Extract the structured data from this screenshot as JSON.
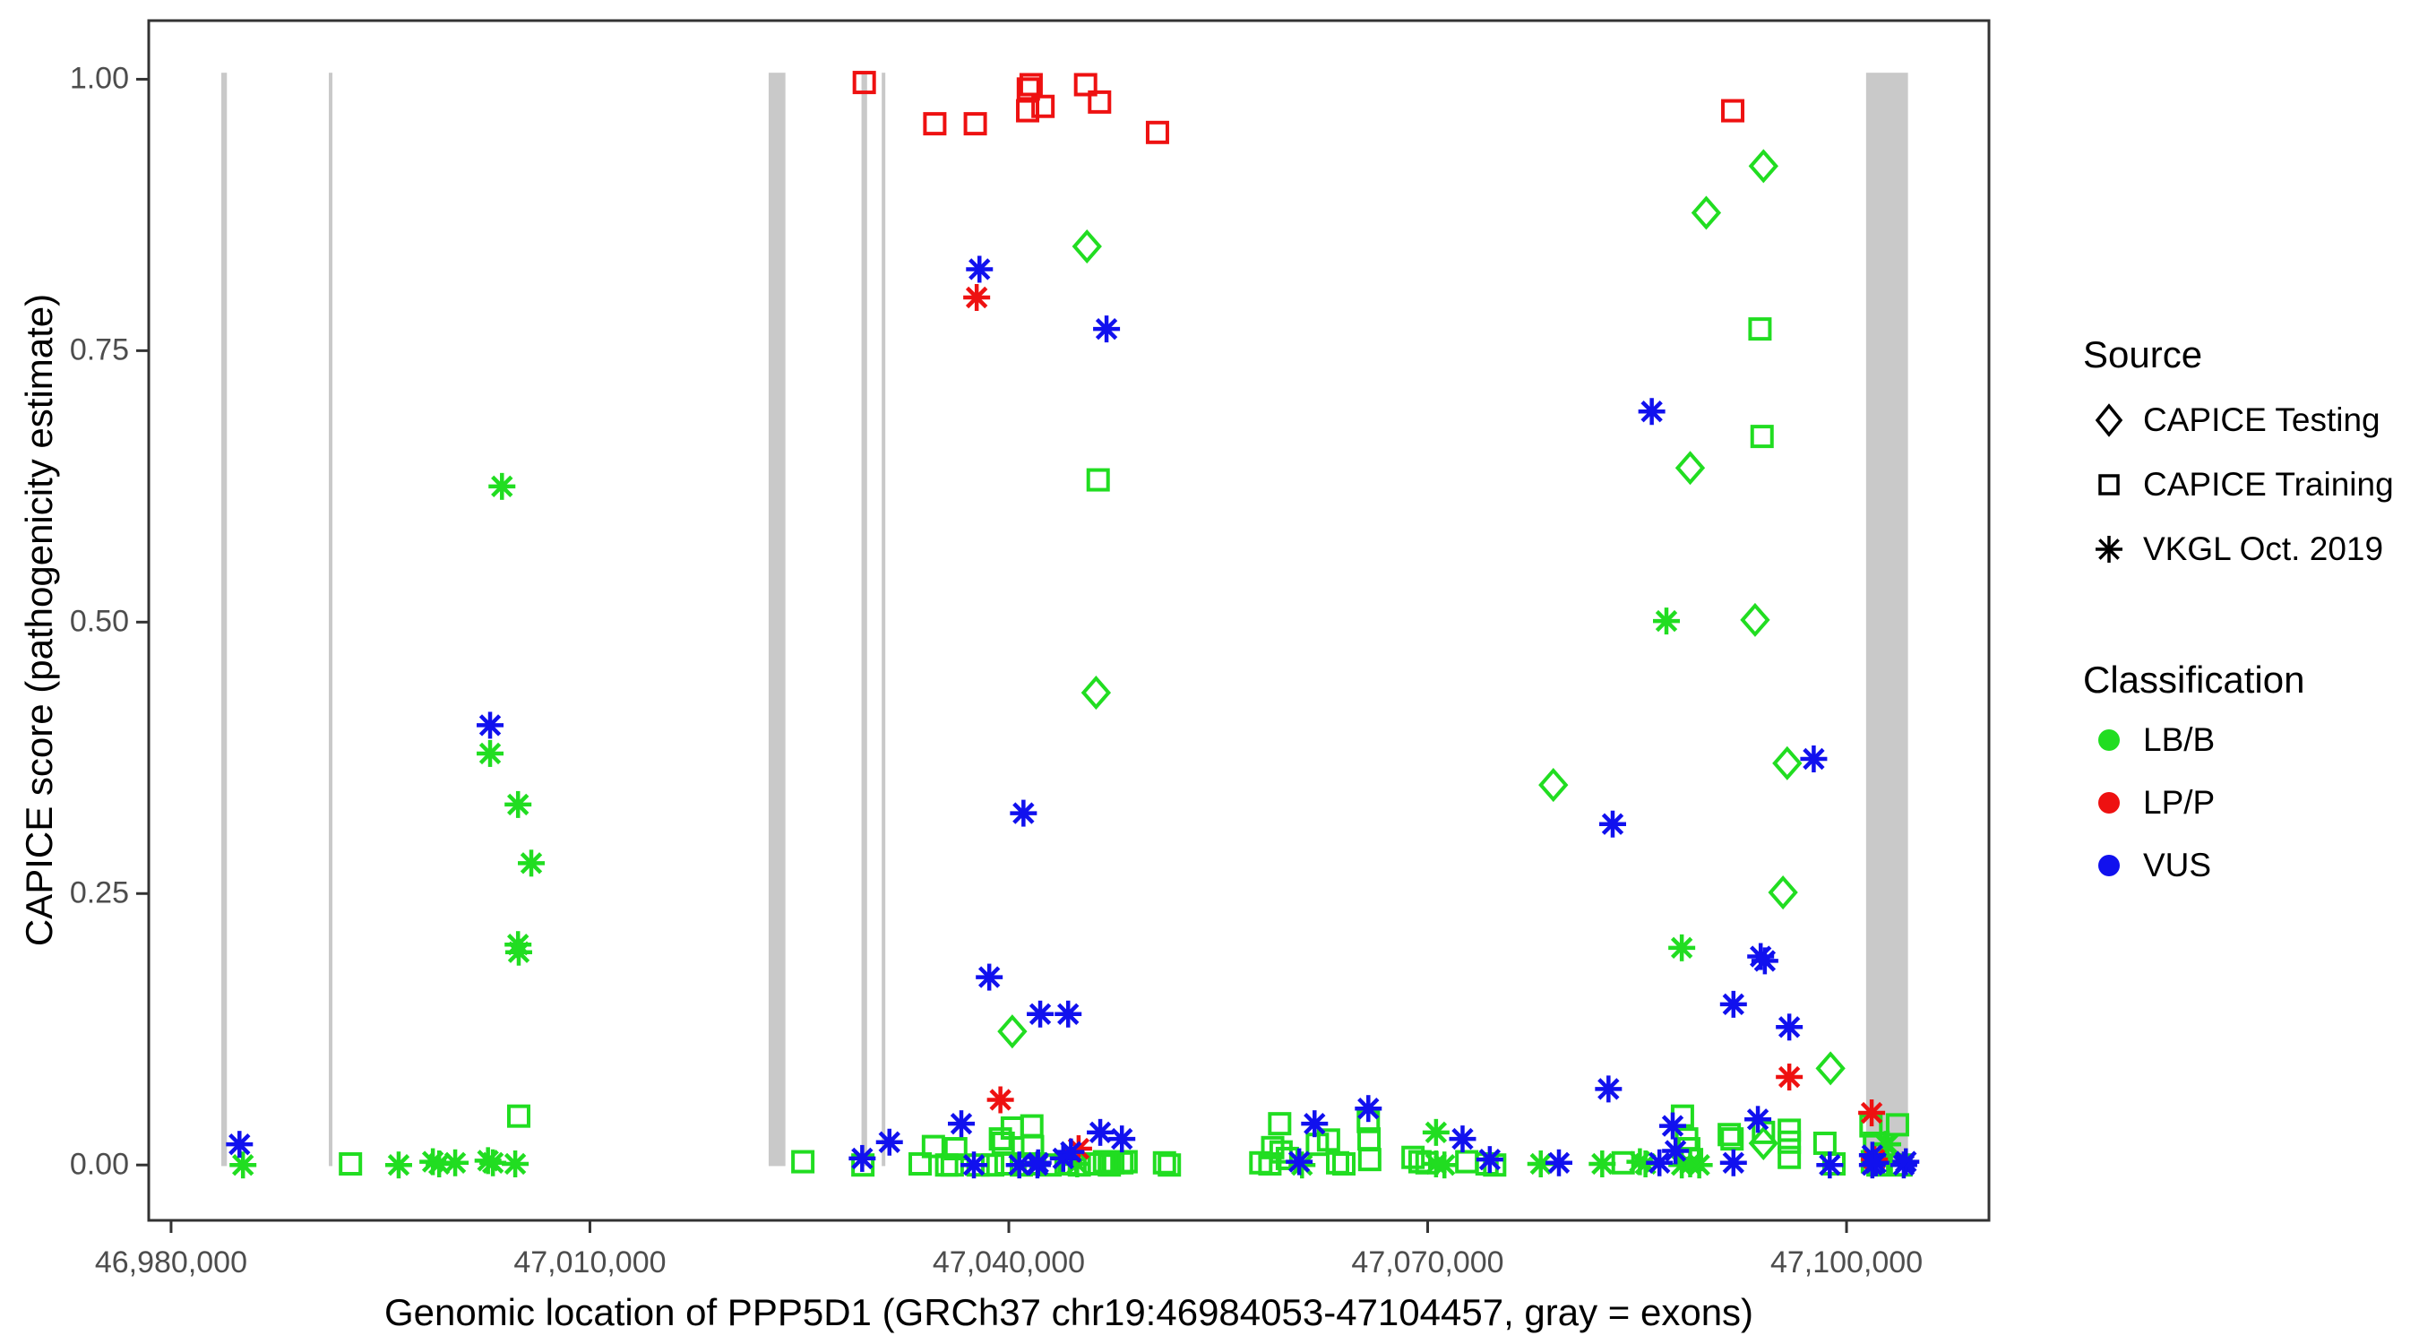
{
  "axis": {
    "x_label": "Genomic location of PPP5D1 (GRCh37 chr19:46984053-47104457, gray = exons)",
    "y_label": "CAPICE score (pathogenicity estimate)"
  },
  "legend": {
    "source": {
      "title": "Source",
      "items": [
        {
          "label": "CAPICE Testing",
          "symbol": "diamond"
        },
        {
          "label": "CAPICE Training",
          "symbol": "square"
        },
        {
          "label": "VKGL Oct. 2019",
          "symbol": "asterisk"
        }
      ]
    },
    "classification": {
      "title": "Classification",
      "items": [
        {
          "label": "LB/B",
          "color_key": "lbb"
        },
        {
          "label": "LP/P",
          "color_key": "lpp"
        },
        {
          "label": "VUS",
          "color_key": "vus"
        }
      ]
    }
  },
  "chart_data": {
    "type": "scatter",
    "title": "",
    "xlabel": "Genomic location of PPP5D1 (GRCh37 chr19:46984053-47104457, gray = exons)",
    "ylabel": "CAPICE score (pathogenicity estimate)",
    "grid": false,
    "legend_position": "right",
    "colors": {
      "lbb": "#21dd21",
      "lpp": "#ee1111",
      "vus": "#1111ee",
      "exon": "#c9c9c9",
      "border": "#333333",
      "tick": "#333333",
      "tick_text": "#4d4d4d"
    },
    "x_axis": {
      "label": "Genomic location of PPP5D1 (GRCh37 chr19:46984053-47104457, gray = exons)",
      "range": [
        46978400,
        47110200
      ],
      "ticks": [
        {
          "pos": 46980000,
          "label": "46,980,000"
        },
        {
          "pos": 47010000,
          "label": "47,010,000"
        },
        {
          "pos": 47040000,
          "label": "47,040,000"
        },
        {
          "pos": 47070000,
          "label": "47,070,000"
        },
        {
          "pos": 47100000,
          "label": "47,100,000"
        }
      ]
    },
    "y_axis": {
      "label": "CAPICE score (pathogenicity estimate)",
      "range": [
        -0.051,
        1.054
      ],
      "ticks": [
        {
          "val": 0.0,
          "label": "0.00"
        },
        {
          "val": 0.25,
          "label": "0.25"
        },
        {
          "val": 0.5,
          "label": "0.50"
        },
        {
          "val": 0.75,
          "label": "0.75"
        },
        {
          "val": 1.0,
          "label": "1.00"
        }
      ]
    },
    "exons": [
      [
        46983600,
        46984000
      ],
      [
        46991300,
        46991550
      ],
      [
        47022800,
        47024000
      ],
      [
        47029450,
        47029850
      ],
      [
        47030900,
        47031150
      ],
      [
        47101400,
        47104400
      ]
    ],
    "exon_score_span": [
      -0.001,
      1.006
    ],
    "series": [
      {
        "name": "CAPICE Testing LB/B",
        "source": "CAPICE Testing",
        "classification": "LB/B",
        "symbol": "diamond",
        "color_key": "lbb",
        "points": [
          [
            47040250,
            0.123
          ],
          [
            47045600,
            0.846
          ],
          [
            47046250,
            0.435
          ],
          [
            47079000,
            0.35
          ],
          [
            47088800,
            0.642
          ],
          [
            47089950,
            0.877
          ],
          [
            47093450,
            0.502
          ],
          [
            47094050,
            0.92
          ],
          [
            47094050,
            0.02
          ],
          [
            47095450,
            0.251
          ],
          [
            47095750,
            0.37
          ],
          [
            47098850,
            0.089
          ]
        ]
      },
      {
        "name": "CAPICE Training LB/B",
        "source": "CAPICE Training",
        "classification": "LB/B",
        "symbol": "square",
        "color_key": "lbb",
        "points": [
          [
            47046400,
            0.631
          ],
          [
            47093800,
            0.77
          ],
          [
            47093950,
            0.671
          ],
          [
            47004900,
            0.045
          ],
          [
            46992850,
            0.001
          ],
          [
            47025250,
            0.003
          ],
          [
            47029550,
            0.0
          ],
          [
            47033650,
            0.001
          ],
          [
            47034600,
            0.017
          ],
          [
            47035550,
            0.0
          ],
          [
            47035950,
            0.0
          ],
          [
            47036200,
            0.015
          ],
          [
            47037800,
            0.0
          ],
          [
            47038850,
            0.0
          ],
          [
            47039400,
            0.024
          ],
          [
            47039600,
            0.02
          ],
          [
            47039800,
            0.001
          ],
          [
            47040250,
            0.034
          ],
          [
            47040900,
            0.0
          ],
          [
            47041650,
            0.036
          ],
          [
            47041700,
            0.017
          ],
          [
            47041850,
            0.001
          ],
          [
            47042950,
            0.0
          ],
          [
            47044100,
            0.001
          ],
          [
            47045050,
            0.0
          ],
          [
            47046150,
            0.001
          ],
          [
            47046850,
            0.003
          ],
          [
            47047200,
            0.0
          ],
          [
            47047450,
            0.002
          ],
          [
            47048100,
            0.002
          ],
          [
            47048400,
            0.003
          ],
          [
            47051150,
            0.002
          ],
          [
            47051500,
            0.0
          ],
          [
            47058050,
            0.002
          ],
          [
            47058700,
            0.001
          ],
          [
            47058900,
            0.016
          ],
          [
            47059400,
            0.038
          ],
          [
            47059500,
            0.012
          ],
          [
            47059950,
            0.006
          ],
          [
            47062100,
            0.019
          ],
          [
            47062900,
            0.023
          ],
          [
            47063550,
            0.002
          ],
          [
            47064000,
            0.001
          ],
          [
            47065750,
            0.04
          ],
          [
            47065800,
            0.024
          ],
          [
            47065850,
            0.005
          ],
          [
            47068950,
            0.007
          ],
          [
            47069450,
            0.003
          ],
          [
            47069950,
            0.002
          ],
          [
            47072800,
            0.003
          ],
          [
            47074250,
            0.001
          ],
          [
            47074800,
            0.0
          ],
          [
            47084000,
            0.002
          ],
          [
            47088250,
            0.045
          ],
          [
            47088550,
            0.024
          ],
          [
            47088700,
            0.015
          ],
          [
            47088900,
            0.005
          ],
          [
            47091600,
            0.028
          ],
          [
            47091800,
            0.024
          ],
          [
            47094050,
            0.03
          ],
          [
            47095900,
            0.032
          ],
          [
            47095900,
            0.021
          ],
          [
            47095900,
            0.007
          ],
          [
            47098450,
            0.02
          ],
          [
            47099100,
            0.001
          ],
          [
            47101750,
            0.036
          ],
          [
            47101850,
            0.003
          ],
          [
            47102000,
            0.02
          ],
          [
            47102250,
            0.0
          ],
          [
            47103650,
            0.037
          ],
          [
            47103900,
            0.0
          ]
        ]
      },
      {
        "name": "CAPICE Training LP/P",
        "source": "CAPICE Training",
        "classification": "LP/P",
        "symbol": "square",
        "color_key": "lpp",
        "points": [
          [
            47029650,
            0.997
          ],
          [
            47034700,
            0.959
          ],
          [
            47037600,
            0.959
          ],
          [
            47041350,
            0.971
          ],
          [
            47041400,
            0.991
          ],
          [
            47041600,
            0.995
          ],
          [
            47042450,
            0.975
          ],
          [
            47045500,
            0.995
          ],
          [
            47046500,
            0.979
          ],
          [
            47050650,
            0.951
          ],
          [
            47091850,
            0.971
          ]
        ]
      },
      {
        "name": "VKGL Oct. 2019 LB/B",
        "source": "VKGL Oct. 2019",
        "classification": "LB/B",
        "symbol": "asterisk",
        "color_key": "lbb",
        "points": [
          [
            46985150,
            0.0
          ],
          [
            46996300,
            0.0
          ],
          [
            46998750,
            0.003
          ],
          [
            46999200,
            0.001
          ],
          [
            47000350,
            0.002
          ],
          [
            47002700,
            0.004
          ],
          [
            47003050,
            0.002
          ],
          [
            47003700,
            0.625
          ],
          [
            47002850,
            0.379
          ],
          [
            47004650,
            0.001
          ],
          [
            47004850,
            0.332
          ],
          [
            47004850,
            0.203
          ],
          [
            47004900,
            0.196
          ],
          [
            47005800,
            0.278
          ],
          [
            47044900,
            0.001
          ],
          [
            47061000,
            0.0
          ],
          [
            47070600,
            0.03
          ],
          [
            47070600,
            0.001
          ],
          [
            47071200,
            0.0
          ],
          [
            47078100,
            0.001
          ],
          [
            47082500,
            0.001
          ],
          [
            47085200,
            0.003
          ],
          [
            47085600,
            0.001
          ],
          [
            47087100,
            0.501
          ],
          [
            47088200,
            0.2
          ],
          [
            47088200,
            0.0
          ],
          [
            47088800,
            0.001
          ],
          [
            47089450,
            0.0
          ],
          [
            47102800,
            0.019
          ],
          [
            47102950,
            0.019
          ]
        ]
      },
      {
        "name": "VKGL Oct. 2019 LP/P",
        "source": "VKGL Oct. 2019",
        "classification": "LP/P",
        "symbol": "asterisk",
        "color_key": "lpp",
        "points": [
          [
            47037700,
            0.799
          ],
          [
            47039400,
            0.06
          ],
          [
            47045000,
            0.015
          ],
          [
            47095900,
            0.081
          ],
          [
            47101800,
            0.048
          ],
          [
            47102000,
            0.005
          ]
        ]
      },
      {
        "name": "VKGL Oct. 2019 VUS",
        "source": "VKGL Oct. 2019",
        "classification": "VUS",
        "symbol": "asterisk",
        "color_key": "vus",
        "points": [
          [
            46984900,
            0.019
          ],
          [
            47002850,
            0.405
          ],
          [
            47029500,
            0.006
          ],
          [
            47031450,
            0.021
          ],
          [
            47036600,
            0.038
          ],
          [
            47037500,
            0.0
          ],
          [
            47037900,
            0.825
          ],
          [
            47038600,
            0.173
          ],
          [
            47040750,
            0.0
          ],
          [
            47041050,
            0.324
          ],
          [
            47042050,
            0.0
          ],
          [
            47042100,
            0.002
          ],
          [
            47042250,
            0.139
          ],
          [
            47043900,
            0.006
          ],
          [
            47044250,
            0.139
          ],
          [
            47044450,
            0.012
          ],
          [
            47046550,
            0.03
          ],
          [
            47047000,
            0.77
          ],
          [
            47048100,
            0.024
          ],
          [
            47060800,
            0.003
          ],
          [
            47061900,
            0.038
          ],
          [
            47065750,
            0.052
          ],
          [
            47072500,
            0.024
          ],
          [
            47074450,
            0.005
          ],
          [
            47079400,
            0.002
          ],
          [
            47082950,
            0.07
          ],
          [
            47083250,
            0.314
          ],
          [
            47086050,
            0.694
          ],
          [
            47086600,
            0.002
          ],
          [
            47087550,
            0.036
          ],
          [
            47087750,
            0.013
          ],
          [
            47091900,
            0.148
          ],
          [
            47091900,
            0.002
          ],
          [
            47093650,
            0.042
          ],
          [
            47093850,
            0.192
          ],
          [
            47094150,
            0.188
          ],
          [
            47095900,
            0.127
          ],
          [
            47097650,
            0.374
          ],
          [
            47098800,
            0.0
          ],
          [
            47101850,
            0.009
          ],
          [
            47101850,
            0.0
          ],
          [
            47102100,
            0.002
          ],
          [
            47104100,
            0.0
          ],
          [
            47104250,
            0.003
          ]
        ]
      }
    ]
  }
}
